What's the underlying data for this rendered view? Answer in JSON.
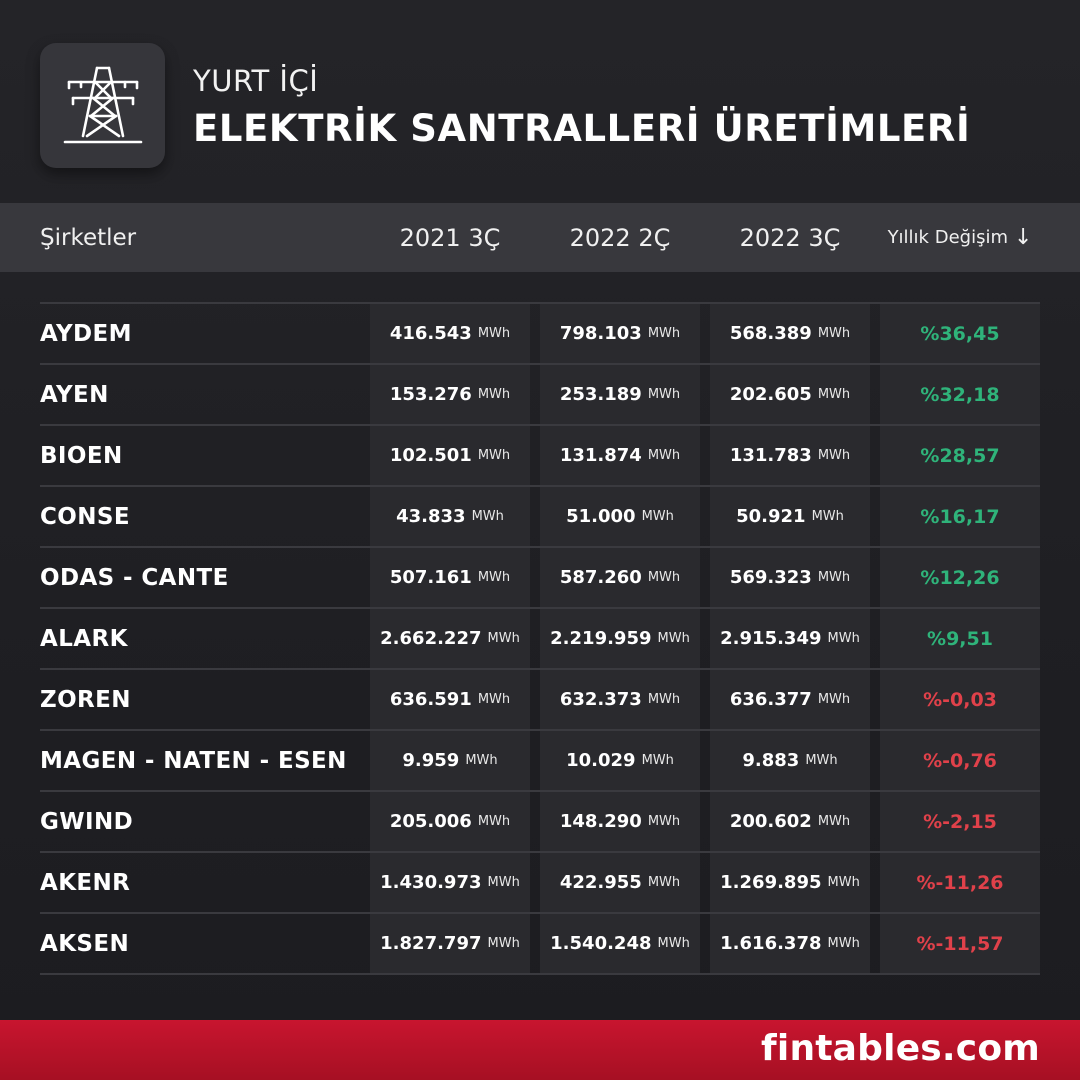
{
  "header": {
    "subtitle": "YURT İÇİ",
    "title": "ELEKTRİK SANTRALLERİ ÜRETİMLERİ",
    "icon": "transmission-tower-icon"
  },
  "columns": {
    "company": "Şirketler",
    "q1": "2021 3Ç",
    "q2": "2022 2Ç",
    "q3": "2022 3Ç",
    "change": "Yıllık Değişim",
    "sort_arrow": "↓"
  },
  "unit": "MWh",
  "rows": [
    {
      "name": "AYDEM",
      "q1": "416.543",
      "q2": "798.103",
      "q3": "568.389",
      "change": "%36,45",
      "direction": "pos"
    },
    {
      "name": "AYEN",
      "q1": "153.276",
      "q2": "253.189",
      "q3": "202.605",
      "change": "%32,18",
      "direction": "pos"
    },
    {
      "name": "BIOEN",
      "q1": "102.501",
      "q2": "131.874",
      "q3": "131.783",
      "change": "%28,57",
      "direction": "pos"
    },
    {
      "name": "CONSE",
      "q1": "43.833",
      "q2": "51.000",
      "q3": "50.921",
      "change": "%16,17",
      "direction": "pos"
    },
    {
      "name": "ODAS - CANTE",
      "q1": "507.161",
      "q2": "587.260",
      "q3": "569.323",
      "change": "%12,26",
      "direction": "pos"
    },
    {
      "name": "ALARK",
      "q1": "2.662.227",
      "q2": "2.219.959",
      "q3": "2.915.349",
      "change": "%9,51",
      "direction": "pos"
    },
    {
      "name": "ZOREN",
      "q1": "636.591",
      "q2": "632.373",
      "q3": "636.377",
      "change": "%-0,03",
      "direction": "neg"
    },
    {
      "name": "MAGEN - NATEN - ESEN",
      "q1": "9.959",
      "q2": "10.029",
      "q3": "9.883",
      "change": "%-0,76",
      "direction": "neg"
    },
    {
      "name": "GWIND",
      "q1": "205.006",
      "q2": "148.290",
      "q3": "200.602",
      "change": "%-2,15",
      "direction": "neg"
    },
    {
      "name": "AKENR",
      "q1": "1.430.973",
      "q2": "422.955",
      "q3": "1.269.895",
      "change": "%-11,26",
      "direction": "neg"
    },
    {
      "name": "AKSEN",
      "q1": "1.827.797",
      "q2": "1.540.248",
      "q3": "1.616.378",
      "change": "%-11,57",
      "direction": "neg"
    }
  ],
  "colors": {
    "positive": "#2fb37a",
    "negative": "#e0414a",
    "footer": "#c8152f"
  },
  "footer": {
    "brand": "fintables.com"
  }
}
